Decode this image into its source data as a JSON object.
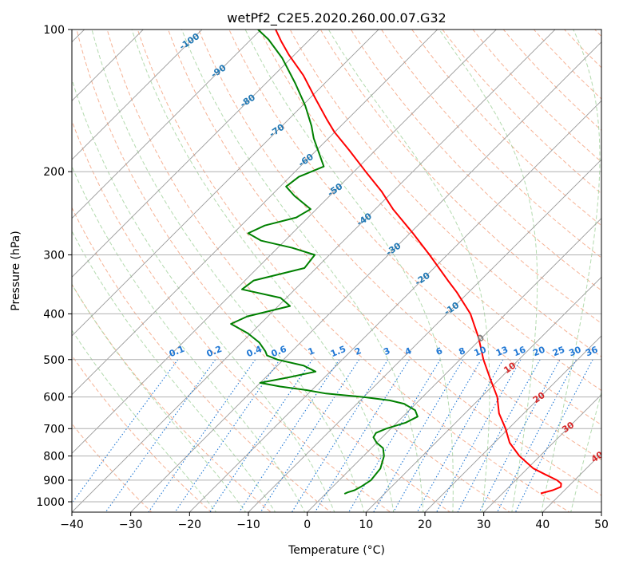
{
  "chart_data": {
    "type": "skew-t",
    "title": "wetPf2_C2E5.2020.260.00.07.G32",
    "xlabel": "Temperature (°C)",
    "ylabel": "Pressure (hPa)",
    "xlim": [
      -40,
      50
    ],
    "ylim": [
      1050,
      100
    ],
    "y_scale": "log",
    "grid": true,
    "x_ticks": [
      -40,
      -30,
      -20,
      -10,
      0,
      10,
      20,
      30,
      40,
      50
    ],
    "x_tick_labels": [
      "−40",
      "−30",
      "−20",
      "−10",
      "0",
      "10",
      "20",
      "30",
      "40",
      "50"
    ],
    "y_ticks": [
      100,
      200,
      300,
      400,
      500,
      600,
      700,
      800,
      900,
      1000
    ],
    "y_tick_labels": [
      "100",
      "200",
      "300",
      "400",
      "500",
      "600",
      "700",
      "800",
      "900",
      "1000"
    ],
    "colors": {
      "temperature": "#ff0000",
      "dewpoint": "#008000",
      "isotherm": "#999999",
      "dry_adiabat": "#f4a582",
      "moist_adiabat": "#a6d3a0",
      "mixing_ratio": "#1f77d4",
      "isotherm_label_neg": "#1f77b4",
      "isotherm_label_pos": "#d62728",
      "isotherm_label_zero": "#808080"
    },
    "isotherm_labels": [
      {
        "t": -100,
        "label": "-100"
      },
      {
        "t": -90,
        "label": "-90"
      },
      {
        "t": -80,
        "label": "-80"
      },
      {
        "t": -70,
        "label": "-70"
      },
      {
        "t": -60,
        "label": "-60"
      },
      {
        "t": -50,
        "label": "-50"
      },
      {
        "t": -40,
        "label": "-40"
      },
      {
        "t": -30,
        "label": "-30"
      },
      {
        "t": -20,
        "label": "-20"
      },
      {
        "t": -10,
        "label": "-10"
      },
      {
        "t": 0,
        "label": "0"
      },
      {
        "t": 10,
        "label": "10"
      },
      {
        "t": 20,
        "label": "20"
      },
      {
        "t": 30,
        "label": "30"
      },
      {
        "t": 40,
        "label": "40"
      }
    ],
    "mixing_ratio_labels": [
      "0.1",
      "0.2",
      "0.4",
      "0.6",
      "1",
      "1.5",
      "2",
      "3",
      "4",
      "6",
      "8",
      "10",
      "13",
      "16",
      "20",
      "25",
      "30",
      "36"
    ],
    "mixing_ratio_values": [
      0.1,
      0.2,
      0.4,
      0.6,
      1,
      1.5,
      2,
      3,
      4,
      6,
      8,
      10,
      13,
      16,
      20,
      25,
      30,
      36
    ],
    "series": [
      {
        "key": "temperature",
        "points": [
          [
            960,
            36.5
          ],
          [
            945,
            38.0
          ],
          [
            930,
            38.8
          ],
          [
            915,
            38.3
          ],
          [
            900,
            37.0
          ],
          [
            875,
            34.0
          ],
          [
            850,
            31.0
          ],
          [
            800,
            26.5
          ],
          [
            750,
            22.6
          ],
          [
            700,
            19.5
          ],
          [
            650,
            15.8
          ],
          [
            600,
            12.7
          ],
          [
            550,
            8.5
          ],
          [
            500,
            4.0
          ],
          [
            450,
            -0.5
          ],
          [
            400,
            -6.0
          ],
          [
            360,
            -12.0
          ],
          [
            340,
            -15.5
          ],
          [
            300,
            -23.0
          ],
          [
            270,
            -29.5
          ],
          [
            240,
            -37.0
          ],
          [
            220,
            -42.0
          ],
          [
            200,
            -48.0
          ],
          [
            180,
            -54.5
          ],
          [
            165,
            -60.0
          ],
          [
            155,
            -63.5
          ],
          [
            140,
            -69.0
          ],
          [
            125,
            -75.0
          ],
          [
            113,
            -81.0
          ],
          [
            106,
            -84.5
          ],
          [
            100,
            -87.5
          ]
        ]
      },
      {
        "key": "dewpoint",
        "points": [
          [
            962,
            3.2
          ],
          [
            955,
            3.5
          ],
          [
            945,
            4.3
          ],
          [
            930,
            4.8
          ],
          [
            900,
            5.4
          ],
          [
            850,
            5.0
          ],
          [
            800,
            3.5
          ],
          [
            770,
            2.0
          ],
          [
            750,
            0.0
          ],
          [
            730,
            -1.5
          ],
          [
            715,
            -1.8
          ],
          [
            700,
            -0.8
          ],
          [
            680,
            1.5
          ],
          [
            660,
            2.5
          ],
          [
            640,
            1.0
          ],
          [
            620,
            -2.0
          ],
          [
            610,
            -5.0
          ],
          [
            600,
            -10.0
          ],
          [
            590,
            -17.0
          ],
          [
            580,
            -21.0
          ],
          [
            570,
            -26.0
          ],
          [
            560,
            -30.0
          ],
          [
            545,
            -26.0
          ],
          [
            530,
            -22.5
          ],
          [
            515,
            -25.5
          ],
          [
            500,
            -31.0
          ],
          [
            490,
            -33.5
          ],
          [
            480,
            -34.5
          ],
          [
            460,
            -37.0
          ],
          [
            440,
            -40.5
          ],
          [
            420,
            -45.0
          ],
          [
            405,
            -43.5
          ],
          [
            385,
            -38.0
          ],
          [
            370,
            -41.0
          ],
          [
            355,
            -49.0
          ],
          [
            340,
            -48.5
          ],
          [
            320,
            -42.0
          ],
          [
            300,
            -42.5
          ],
          [
            290,
            -47.5
          ],
          [
            280,
            -54.0
          ],
          [
            270,
            -57.5
          ],
          [
            260,
            -56.0
          ],
          [
            250,
            -52.0
          ],
          [
            240,
            -51.0
          ],
          [
            225,
            -56.0
          ],
          [
            215,
            -59.0
          ],
          [
            205,
            -58.5
          ],
          [
            195,
            -56.0
          ],
          [
            185,
            -58.5
          ],
          [
            170,
            -62.5
          ],
          [
            160,
            -65.0
          ],
          [
            145,
            -69.5
          ],
          [
            130,
            -75.0
          ],
          [
            115,
            -81.5
          ],
          [
            105,
            -87.0
          ],
          [
            100,
            -90.5
          ]
        ]
      }
    ]
  }
}
